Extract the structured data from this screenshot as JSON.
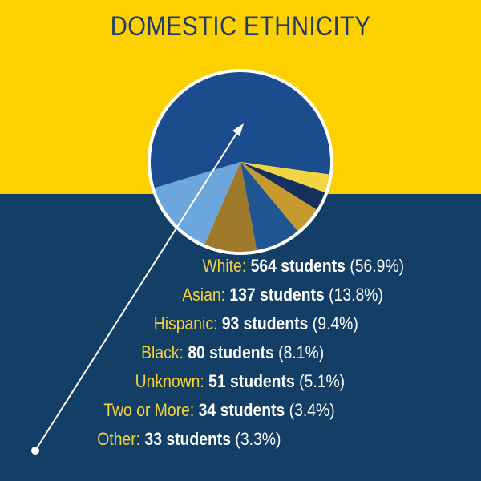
{
  "title": "DOMESTIC ETHNICITY",
  "colors": {
    "top_background": "#FDD100",
    "bottom_background": "#133E66",
    "title": "#1F3B6A",
    "category_text": "#F7D23A",
    "value_text": "#FFFFFF",
    "pointer": "#FFFFFF"
  },
  "chart_data": {
    "type": "pie",
    "title": "DOMESTIC ETHNICITY",
    "slices": [
      {
        "label": "White",
        "count": 564,
        "count_text": "564 students",
        "percent": 56.9,
        "percent_text": "(56.9%)",
        "color": "#1B4C8E"
      },
      {
        "label": "Asian",
        "count": 137,
        "count_text": "137 students",
        "percent": 13.8,
        "percent_text": "(13.8%)",
        "color": "#6BA7DD"
      },
      {
        "label": "Hispanic",
        "count": 93,
        "count_text": "93 students",
        "percent": 9.4,
        "percent_text": "(9.4%)",
        "color": "#A07A2C"
      },
      {
        "label": "Black",
        "count": 80,
        "count_text": "80 students",
        "percent": 8.1,
        "percent_text": "(8.1%)",
        "color": "#1F5591"
      },
      {
        "label": "Unknown",
        "count": 51,
        "count_text": "51 students",
        "percent": 5.1,
        "percent_text": "(5.1%)",
        "color": "#C69A2E"
      },
      {
        "label": "Two or More",
        "count": 34,
        "count_text": "34 students",
        "percent": 3.4,
        "percent_text": "(3.4%)",
        "color": "#16305E"
      },
      {
        "label": "Other",
        "count": 33,
        "count_text": "33 students",
        "percent": 3.3,
        "percent_text": "(3.3%)",
        "color": "#F3D443"
      }
    ]
  }
}
